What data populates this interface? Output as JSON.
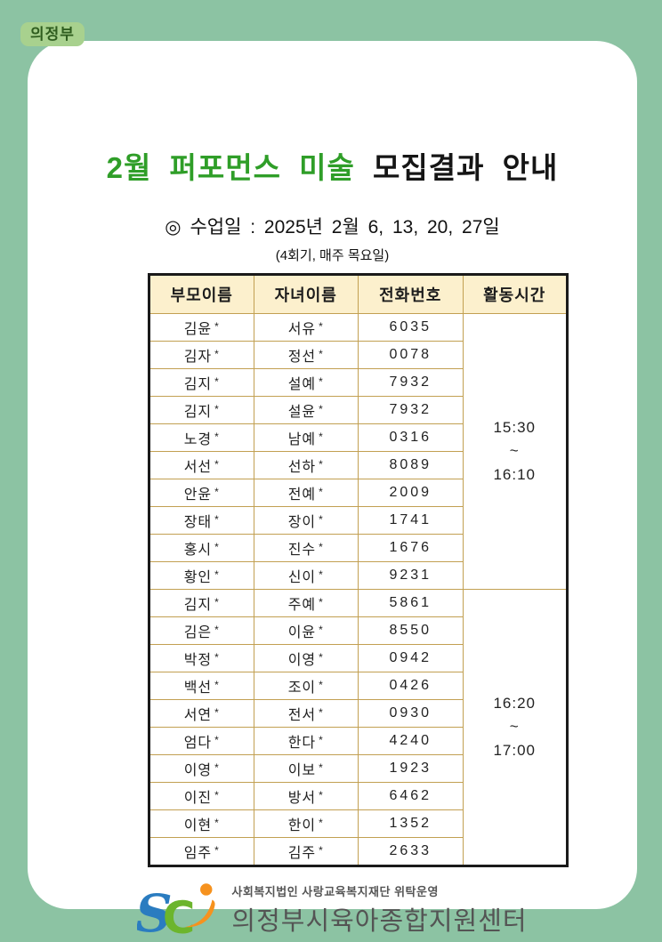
{
  "badge": {
    "label": "의정부"
  },
  "title": {
    "green_part": "2월 퍼포먼스 미술",
    "black_part": "모집결과 안내"
  },
  "subtitle": {
    "line1": "◎ 수업일 : 2025년 2월 6, 13, 20, 27일",
    "line2": "(4회기, 매주 목요일)"
  },
  "table": {
    "headers": [
      "부모이름",
      "자녀이름",
      "전화번호",
      "활동시간"
    ],
    "groups": [
      {
        "activity_time": {
          "start": "15:30",
          "separator": "~",
          "end": "16:10"
        },
        "rows": [
          {
            "parent": "김윤*",
            "child": "서유*",
            "phone": "6035"
          },
          {
            "parent": "김자*",
            "child": "정선*",
            "phone": "0078"
          },
          {
            "parent": "김지*",
            "child": "설예*",
            "phone": "7932"
          },
          {
            "parent": "김지*",
            "child": "설윤*",
            "phone": "7932"
          },
          {
            "parent": "노경*",
            "child": "남예*",
            "phone": "0316"
          },
          {
            "parent": "서선*",
            "child": "선하*",
            "phone": "8089"
          },
          {
            "parent": "안윤*",
            "child": "전예*",
            "phone": "2009"
          },
          {
            "parent": "장태*",
            "child": "장이*",
            "phone": "1741"
          },
          {
            "parent": "홍시*",
            "child": "진수*",
            "phone": "1676"
          },
          {
            "parent": "황인*",
            "child": "신이*",
            "phone": "9231"
          }
        ]
      },
      {
        "activity_time": {
          "start": "16:20",
          "separator": "~",
          "end": "17:00"
        },
        "rows": [
          {
            "parent": "김지*",
            "child": "주예*",
            "phone": "5861"
          },
          {
            "parent": "김은*",
            "child": "이윤*",
            "phone": "8550"
          },
          {
            "parent": "박정*",
            "child": "이영*",
            "phone": "0942"
          },
          {
            "parent": "백선*",
            "child": "조이*",
            "phone": "0426"
          },
          {
            "parent": "서연*",
            "child": "전서*",
            "phone": "0930"
          },
          {
            "parent": "엄다*",
            "child": "한다*",
            "phone": "4240"
          },
          {
            "parent": "이영*",
            "child": "이보*",
            "phone": "1923"
          },
          {
            "parent": "이진*",
            "child": "방서*",
            "phone": "6462"
          },
          {
            "parent": "이현*",
            "child": "한이*",
            "phone": "1352"
          },
          {
            "parent": "임주*",
            "child": "김주*",
            "phone": "2633"
          }
        ]
      }
    ]
  },
  "footer": {
    "line1": "사회복지법인 사랑교육복지재단 위탁운영",
    "line2": "의정부시육아종합지원센터"
  },
  "colors": {
    "page_background": "#8cc3a3",
    "badge_background": "#a8d18e",
    "badge_text": "#2f5d1f",
    "title_green": "#2f9e28",
    "title_black": "#151515",
    "table_header_fill": "#fcf0cd",
    "table_inner_border": "#c2a052",
    "table_outer_border": "#1a1a1a",
    "footer_text": "#555555",
    "logo_blue": "#2a7cc0",
    "logo_green": "#6cb52d",
    "logo_orange": "#f6921e"
  }
}
